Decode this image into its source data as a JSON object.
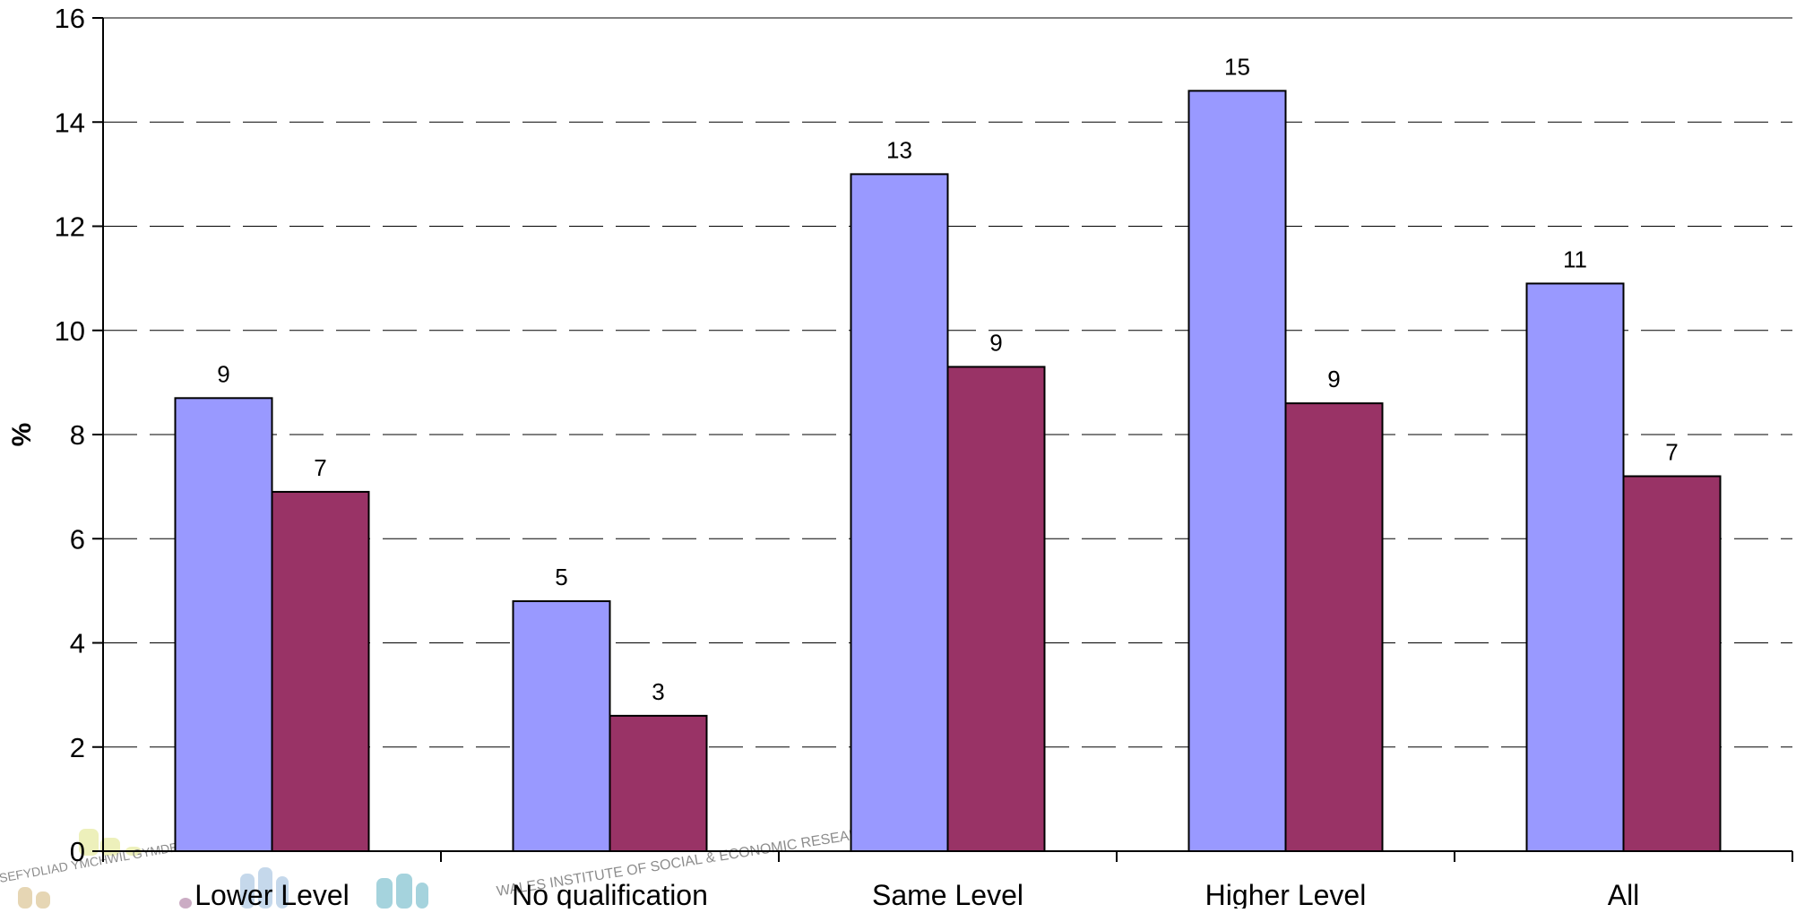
{
  "chart_data": {
    "type": "bar",
    "title": "",
    "xlabel": "",
    "ylabel": "%",
    "ylim": [
      0,
      16
    ],
    "ytick_step": 2,
    "yticks": [
      "0",
      "2",
      "4",
      "6",
      "8",
      "10",
      "12",
      "14",
      "16"
    ],
    "grid": "horizontal-dashed",
    "legend": "none",
    "categories": [
      "Lower Level",
      "No qualification",
      "Same Level",
      "Higher Level",
      "All"
    ],
    "series": [
      {
        "color": "#9999ff",
        "values": [
          8.7,
          4.8,
          13.0,
          14.6,
          10.9
        ],
        "labels": [
          "9",
          "5",
          "13",
          "15",
          "11"
        ]
      },
      {
        "color": "#993366",
        "values": [
          6.9,
          2.6,
          9.3,
          8.6,
          7.2
        ],
        "labels": [
          "7",
          "3",
          "9",
          "9",
          "7"
        ]
      }
    ]
  },
  "watermark": {
    "text_1": "WALES INSTITUTE OF SOCIAL & ECONOMIC RESEARCH",
    "text_2": "SEFYDLIAD YMCHWIL GYMDEITHASOL & ECONOMAIDD",
    "colors": [
      "#d8df6a",
      "#c9a55a",
      "#7fa9d4",
      "#3aa0b4",
      "#8e4a7e"
    ]
  }
}
